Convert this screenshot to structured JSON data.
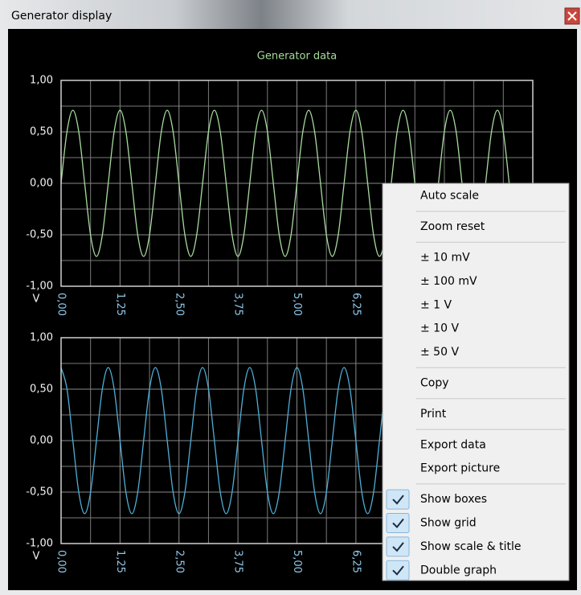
{
  "window": {
    "title": "Generator display"
  },
  "chart_data": [
    {
      "type": "line",
      "title": "Generator data",
      "ylabel": "V",
      "x": [
        0,
        0.125,
        0.25,
        0.375,
        0.5,
        0.625,
        0.75,
        0.875,
        1,
        1.125,
        1.25,
        1.375,
        1.5,
        1.625,
        1.75,
        1.875,
        2,
        2.125,
        2.25,
        2.375,
        2.5,
        2.625,
        2.75,
        2.875,
        3,
        3.125,
        3.25,
        3.375,
        3.5,
        3.625,
        3.75,
        3.875,
        4,
        4.125,
        4.25,
        4.375,
        4.5,
        4.625,
        4.75,
        4.875,
        5,
        5.125,
        5.25,
        5.375,
        5.5,
        5.625,
        5.75,
        5.875,
        6,
        6.125,
        6.25,
        6.375,
        6.5,
        6.625,
        6.75,
        6.875,
        7,
        7.125,
        7.25,
        7.375,
        7.5,
        7.625,
        7.75,
        7.875,
        8,
        8.125,
        8.25,
        8.375,
        8.5,
        8.625,
        8.75,
        8.875,
        9,
        9.125,
        9.25,
        9.375,
        9.5,
        9.625,
        9.75,
        9.875,
        10
      ],
      "series": [
        {
          "color": "#a6dc9c",
          "values": [
            0,
            0.502,
            0.71,
            0.502,
            0,
            -0.502,
            -0.71,
            -0.502,
            0,
            0.502,
            0.71,
            0.502,
            0,
            -0.502,
            -0.71,
            -0.502,
            0,
            0.502,
            0.71,
            0.502,
            0,
            -0.502,
            -0.71,
            -0.502,
            0,
            0.502,
            0.71,
            0.502,
            0,
            -0.502,
            -0.71,
            -0.502,
            0,
            0.502,
            0.71,
            0.502,
            0,
            -0.502,
            -0.71,
            -0.502,
            0,
            0.502,
            0.71,
            0.502,
            0,
            -0.502,
            -0.71,
            -0.502,
            0,
            0.502,
            0.71,
            0.502,
            0,
            -0.502,
            -0.71,
            -0.502,
            0,
            0.502,
            0.71,
            0.502,
            0,
            -0.502,
            -0.71,
            -0.502,
            0,
            0.502,
            0.71,
            0.502,
            0,
            -0.502,
            -0.71,
            -0.502,
            0,
            0.502,
            0.71,
            0.502,
            0,
            -0.502,
            -0.71,
            -0.502,
            0
          ]
        }
      ],
      "xlim": [
        0,
        10
      ],
      "ylim": [
        -1,
        1
      ],
      "xticks": [
        {
          "value": 0,
          "label": "0,00"
        },
        {
          "value": 1.25,
          "label": "1,25"
        },
        {
          "value": 2.5,
          "label": "2,50"
        },
        {
          "value": 3.75,
          "label": "3,75"
        },
        {
          "value": 5,
          "label": "5,00"
        },
        {
          "value": 6.25,
          "label": "6,25"
        }
      ],
      "xminorticks": [
        0.625,
        1.875,
        3.125,
        4.375,
        5.625,
        6.875,
        7.5,
        8.125,
        8.75,
        9.375
      ],
      "yticks": [
        {
          "value": -1,
          "label": "-1,00"
        },
        {
          "value": -0.5,
          "label": "-0,50"
        },
        {
          "value": 0,
          "label": "0,00"
        },
        {
          "value": 0.5,
          "label": "0,50"
        },
        {
          "value": 1,
          "label": "1,00"
        }
      ],
      "yminorticks": [
        -0.75,
        -0.25,
        0.25,
        0.75
      ],
      "grid": true
    },
    {
      "type": "line",
      "ylabel": "V",
      "x": [
        0,
        0.125,
        0.25,
        0.375,
        0.5,
        0.625,
        0.75,
        0.875,
        1,
        1.125,
        1.25,
        1.375,
        1.5,
        1.625,
        1.75,
        1.875,
        2,
        2.125,
        2.25,
        2.375,
        2.5,
        2.625,
        2.75,
        2.875,
        3,
        3.125,
        3.25,
        3.375,
        3.5,
        3.625,
        3.75,
        3.875,
        4,
        4.125,
        4.25,
        4.375,
        4.5,
        4.625,
        4.75,
        4.875,
        5,
        5.125,
        5.25,
        5.375,
        5.5,
        5.625,
        5.75,
        5.875,
        6,
        6.125,
        6.25,
        6.375,
        6.5,
        6.625,
        6.75,
        6.875,
        7,
        7.125,
        7.25,
        7.375,
        7.5,
        7.625,
        7.75,
        7.875,
        8,
        8.125,
        8.25,
        8.375,
        8.5,
        8.625,
        8.75,
        8.875,
        9,
        9.125,
        9.25,
        9.375,
        9.5,
        9.625,
        9.75,
        9.875,
        10
      ],
      "series": [
        {
          "color": "#4eafd6",
          "values": [
            0.71,
            0.502,
            0,
            -0.502,
            -0.71,
            -0.502,
            0,
            0.502,
            0.71,
            0.502,
            0,
            -0.502,
            -0.71,
            -0.502,
            0,
            0.502,
            0.71,
            0.502,
            0,
            -0.502,
            -0.71,
            -0.502,
            0,
            0.502,
            0.71,
            0.502,
            0,
            -0.502,
            -0.71,
            -0.502,
            0,
            0.502,
            0.71,
            0.502,
            0,
            -0.502,
            -0.71,
            -0.502,
            0,
            0.502,
            0.71,
            0.502,
            0,
            -0.502,
            -0.71,
            -0.502,
            0,
            0.502,
            0.71,
            0.502,
            0,
            -0.502,
            -0.71,
            -0.502,
            0,
            0.502,
            0.71,
            0.502,
            0,
            -0.502,
            -0.71,
            -0.502,
            0,
            0.502,
            0.71,
            0.502,
            0,
            -0.502,
            -0.71,
            -0.502,
            0,
            0.502,
            0.71,
            0.502,
            0,
            -0.502,
            -0.71,
            -0.502,
            0,
            0.502,
            0.71
          ]
        }
      ],
      "xlim": [
        0,
        10
      ],
      "ylim": [
        -1,
        1
      ],
      "xticks": [
        {
          "value": 0,
          "label": "0,00"
        },
        {
          "value": 1.25,
          "label": "1,25"
        },
        {
          "value": 2.5,
          "label": "2,50"
        },
        {
          "value": 3.75,
          "label": "3,75"
        },
        {
          "value": 5,
          "label": "5,00"
        },
        {
          "value": 6.25,
          "label": "6,25"
        }
      ],
      "xminorticks": [
        0.625,
        1.875,
        3.125,
        4.375,
        5.625,
        6.875,
        7.5,
        8.125,
        8.75,
        9.375
      ],
      "yticks": [
        {
          "value": -1,
          "label": "-1,00"
        },
        {
          "value": -0.5,
          "label": "-0,50"
        },
        {
          "value": 0,
          "label": "0,00"
        },
        {
          "value": 0.5,
          "label": "0,50"
        },
        {
          "value": 1,
          "label": "1,00"
        }
      ],
      "yminorticks": [
        -0.75,
        -0.25,
        0.25,
        0.75
      ],
      "grid": true
    }
  ],
  "menu": {
    "groups": [
      [
        {
          "label": "Auto scale"
        }
      ],
      [
        {
          "label": "Zoom reset"
        }
      ],
      [
        {
          "label": "± 10 mV"
        },
        {
          "label": "± 100 mV"
        },
        {
          "label": "± 1 V"
        },
        {
          "label": "± 10 V"
        },
        {
          "label": "± 50 V"
        }
      ],
      [
        {
          "label": "Copy"
        }
      ],
      [
        {
          "label": "Print"
        }
      ],
      [
        {
          "label": "Export data"
        },
        {
          "label": "Export picture"
        }
      ],
      [
        {
          "label": "Show boxes",
          "checked": true
        },
        {
          "label": "Show grid",
          "checked": true
        },
        {
          "label": "Show scale & title",
          "checked": true
        },
        {
          "label": "Double graph",
          "checked": true
        }
      ]
    ]
  }
}
